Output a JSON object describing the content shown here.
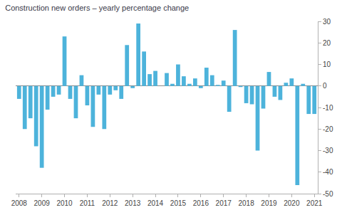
{
  "chart_data": {
    "type": "bar",
    "title": "Construction new orders – yearly percentage change",
    "categories": [
      "2008",
      null,
      null,
      null,
      "2009",
      null,
      null,
      null,
      "2010",
      null,
      null,
      null,
      "2011",
      null,
      null,
      null,
      "2012",
      null,
      null,
      null,
      "2013",
      null,
      null,
      null,
      "2014",
      null,
      null,
      null,
      "2015",
      null,
      null,
      null,
      "2016",
      null,
      null,
      null,
      "2017",
      null,
      null,
      null,
      "2018",
      null,
      null,
      null,
      "2019",
      null,
      null,
      null,
      "2020",
      null,
      null,
      null,
      "2021"
    ],
    "values": [
      -6,
      -20,
      -15,
      -28,
      -38,
      -11,
      -5,
      -4,
      23,
      -6,
      -15,
      5,
      -9,
      -19,
      -4,
      -20,
      -4,
      -2,
      -6,
      19,
      -1,
      29,
      16,
      5.5,
      7,
      0,
      6,
      1,
      10,
      4.5,
      1,
      3.5,
      -1,
      8.5,
      5,
      0.5,
      2.5,
      -12,
      26,
      -0.5,
      -8,
      -8.5,
      -30,
      -10.5,
      6.5,
      -5,
      -6.5,
      1.5,
      3.5,
      -46,
      1,
      -13,
      -13
    ],
    "color": "#4db3db",
    "ylim": [
      -50,
      30
    ],
    "yticks": [
      -50,
      -40,
      -30,
      -20,
      -10,
      0,
      10,
      20,
      30
    ],
    "grid": false
  }
}
